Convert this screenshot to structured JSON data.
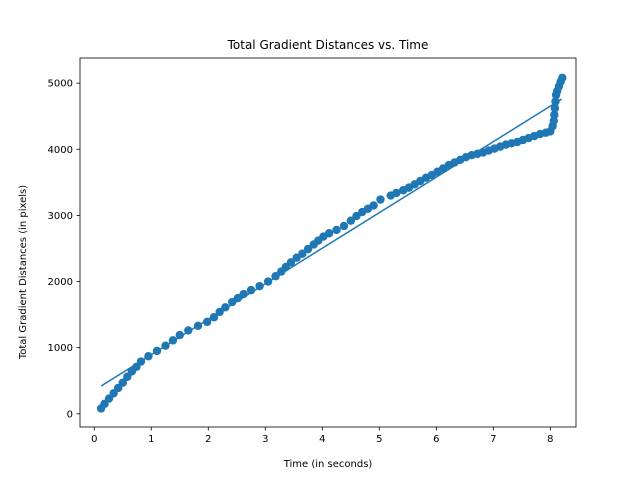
{
  "chart_data": {
    "type": "scatter",
    "title": "Total Gradient Distances vs. Time",
    "xlabel": "Time (in seconds)",
    "ylabel": "Total Gradient Distances (in pixels)",
    "xlim": [
      -0.25,
      8.45
    ],
    "ylim": [
      -200,
      5380
    ],
    "xticks": [
      0,
      1,
      2,
      3,
      4,
      5,
      6,
      7,
      8
    ],
    "yticks": [
      0,
      1000,
      2000,
      3000,
      4000,
      5000
    ],
    "grid": false,
    "legend": "none",
    "color": "#1f77b4",
    "series": [
      {
        "type": "scatter",
        "points": [
          [
            0.12,
            80
          ],
          [
            0.18,
            150
          ],
          [
            0.26,
            230
          ],
          [
            0.34,
            310
          ],
          [
            0.42,
            390
          ],
          [
            0.5,
            470
          ],
          [
            0.58,
            560
          ],
          [
            0.66,
            640
          ],
          [
            0.74,
            710
          ],
          [
            0.82,
            790
          ],
          [
            0.95,
            870
          ],
          [
            1.1,
            950
          ],
          [
            1.25,
            1030
          ],
          [
            1.38,
            1110
          ],
          [
            1.5,
            1190
          ],
          [
            1.65,
            1260
          ],
          [
            1.82,
            1330
          ],
          [
            1.98,
            1390
          ],
          [
            2.1,
            1460
          ],
          [
            2.2,
            1540
          ],
          [
            2.3,
            1610
          ],
          [
            2.42,
            1690
          ],
          [
            2.52,
            1750
          ],
          [
            2.62,
            1810
          ],
          [
            2.75,
            1870
          ],
          [
            2.9,
            1930
          ],
          [
            3.05,
            2000
          ],
          [
            3.18,
            2080
          ],
          [
            3.28,
            2150
          ],
          [
            3.36,
            2220
          ],
          [
            3.45,
            2290
          ],
          [
            3.55,
            2360
          ],
          [
            3.65,
            2420
          ],
          [
            3.75,
            2490
          ],
          [
            3.85,
            2560
          ],
          [
            3.93,
            2620
          ],
          [
            4.02,
            2680
          ],
          [
            4.12,
            2730
          ],
          [
            4.25,
            2780
          ],
          [
            4.38,
            2840
          ],
          [
            4.5,
            2920
          ],
          [
            4.6,
            2990
          ],
          [
            4.7,
            3050
          ],
          [
            4.8,
            3100
          ],
          [
            4.9,
            3150
          ],
          [
            5.02,
            3240
          ],
          [
            5.2,
            3300
          ],
          [
            5.3,
            3340
          ],
          [
            5.42,
            3380
          ],
          [
            5.52,
            3420
          ],
          [
            5.62,
            3470
          ],
          [
            5.72,
            3520
          ],
          [
            5.82,
            3570
          ],
          [
            5.92,
            3610
          ],
          [
            6.02,
            3660
          ],
          [
            6.12,
            3710
          ],
          [
            6.22,
            3760
          ],
          [
            6.32,
            3800
          ],
          [
            6.42,
            3840
          ],
          [
            6.52,
            3880
          ],
          [
            6.62,
            3910
          ],
          [
            6.72,
            3930
          ],
          [
            6.82,
            3950
          ],
          [
            6.92,
            3980
          ],
          [
            7.02,
            4010
          ],
          [
            7.12,
            4040
          ],
          [
            7.22,
            4070
          ],
          [
            7.32,
            4090
          ],
          [
            7.42,
            4110
          ],
          [
            7.52,
            4140
          ],
          [
            7.62,
            4170
          ],
          [
            7.72,
            4200
          ],
          [
            7.82,
            4230
          ],
          [
            7.92,
            4250
          ],
          [
            8.0,
            4270
          ],
          [
            8.04,
            4350
          ],
          [
            8.06,
            4430
          ],
          [
            8.07,
            4520
          ],
          [
            8.08,
            4620
          ],
          [
            8.09,
            4720
          ],
          [
            8.1,
            4820
          ],
          [
            8.12,
            4880
          ],
          [
            8.15,
            4950
          ],
          [
            8.18,
            5020
          ],
          [
            8.21,
            5080
          ]
        ]
      },
      {
        "type": "line",
        "points": [
          [
            0.12,
            420
          ],
          [
            8.2,
            4760
          ]
        ]
      }
    ]
  }
}
